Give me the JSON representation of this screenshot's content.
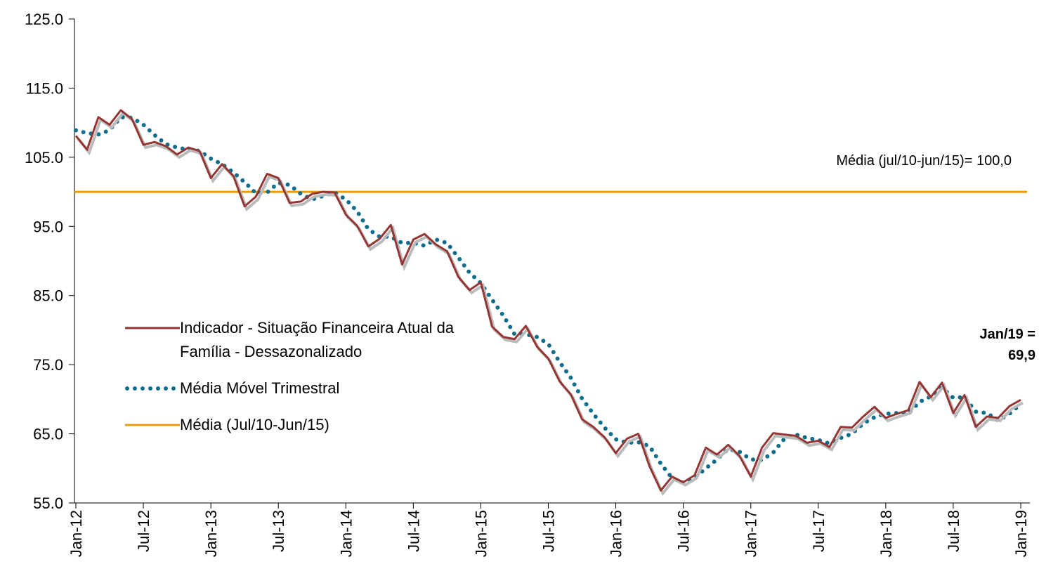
{
  "chart_data": {
    "type": "line",
    "categories": [
      "Jan-12",
      null,
      null,
      null,
      null,
      null,
      "Jul-12",
      null,
      null,
      null,
      null,
      null,
      "Jan-13",
      null,
      null,
      null,
      null,
      null,
      "Jul-13",
      null,
      null,
      null,
      null,
      null,
      "Jan-14",
      null,
      null,
      null,
      null,
      null,
      "Jul-14",
      null,
      null,
      null,
      null,
      null,
      "Jan-15",
      null,
      null,
      null,
      null,
      null,
      "Jul-15",
      null,
      null,
      null,
      null,
      null,
      "Jan-16",
      null,
      null,
      null,
      null,
      null,
      "Jul-16",
      null,
      null,
      null,
      null,
      null,
      "Jan-17",
      null,
      null,
      null,
      null,
      null,
      "Jul-17",
      null,
      null,
      null,
      null,
      null,
      "Jan-18",
      null,
      null,
      null,
      null,
      null,
      "Jul-18",
      null,
      null,
      null,
      null,
      null,
      "Jan-19"
    ],
    "series": [
      {
        "name": "Indicador - Situação Financeira Atual da Família - Dessazonalizado",
        "color": "#943634",
        "style": "solid",
        "values": [
          108.1,
          106.1,
          110.8,
          109.7,
          111.8,
          110.5,
          106.8,
          107.2,
          106.6,
          105.4,
          106.4,
          105.9,
          102.0,
          104.0,
          102.3,
          97.9,
          99.3,
          102.6,
          102.0,
          98.4,
          98.6,
          99.7,
          100.0,
          99.9,
          96.7,
          95.1,
          92.1,
          93.2,
          95.2,
          89.5,
          93.1,
          93.9,
          92.4,
          91.4,
          87.7,
          85.8,
          86.9,
          80.5,
          79.0,
          78.7,
          80.6,
          77.6,
          75.9,
          72.6,
          70.7,
          67.1,
          66.0,
          64.5,
          62.2,
          64.3,
          65.0,
          60.3,
          56.8,
          58.8,
          58.0,
          59.0,
          63.0,
          62.0,
          63.4,
          61.8,
          58.8,
          63.0,
          65.1,
          64.9,
          64.7,
          63.7,
          64.0,
          63.1,
          66.0,
          65.9,
          67.5,
          68.9,
          67.3,
          67.9,
          68.4,
          72.5,
          70.3,
          72.4,
          68.0,
          70.6,
          66.0,
          67.5,
          67.3,
          69.0,
          69.9
        ]
      },
      {
        "name": "Média Móvel Trimestral",
        "color": "#0e6e8c",
        "style": "dotted",
        "values": [
          108.9,
          108.5,
          108.3,
          108.9,
          110.8,
          110.7,
          109.7,
          108.2,
          106.9,
          106.4,
          106.1,
          105.9,
          104.8,
          104.0,
          102.8,
          101.4,
          99.8,
          99.9,
          101.3,
          101.0,
          99.7,
          98.9,
          99.4,
          99.9,
          98.9,
          97.2,
          94.6,
          93.5,
          93.5,
          92.6,
          92.6,
          92.2,
          93.1,
          92.6,
          90.5,
          88.3,
          86.8,
          84.4,
          82.1,
          79.4,
          79.4,
          79.0,
          78.0,
          75.4,
          73.1,
          70.1,
          67.9,
          65.9,
          64.2,
          63.7,
          63.8,
          63.2,
          60.7,
          58.6,
          57.9,
          58.6,
          60.0,
          61.3,
          62.8,
          62.4,
          61.3,
          61.2,
          62.3,
          64.3,
          64.9,
          64.4,
          64.1,
          63.6,
          64.4,
          65.0,
          66.5,
          67.4,
          67.9,
          68.0,
          67.9,
          69.6,
          70.4,
          71.7,
          70.2,
          70.3,
          68.2,
          68.0,
          66.9,
          67.9,
          69.3
        ]
      }
    ],
    "reference_line": {
      "name": "Média (Jul/10-Jun/15)",
      "color": "#e69c0c",
      "value": 100
    },
    "annotations": [
      {
        "text": "Média (jul/10-jun/15)= 100,0"
      },
      {
        "lines": [
          "Jan/19 =",
          "69,9"
        ]
      }
    ],
    "ylim": [
      55,
      125
    ],
    "yticks": [
      {
        "value": 55,
        "label": "55.0"
      },
      {
        "value": 65,
        "label": "65.0"
      },
      {
        "value": 75,
        "label": "75.0"
      },
      {
        "value": 85,
        "label": "85.0"
      },
      {
        "value": 95,
        "label": "95.0"
      },
      {
        "value": 105,
        "label": "105.0"
      },
      {
        "value": 115,
        "label": "115.0"
      },
      {
        "value": 125,
        "label": "125.0"
      }
    ]
  }
}
